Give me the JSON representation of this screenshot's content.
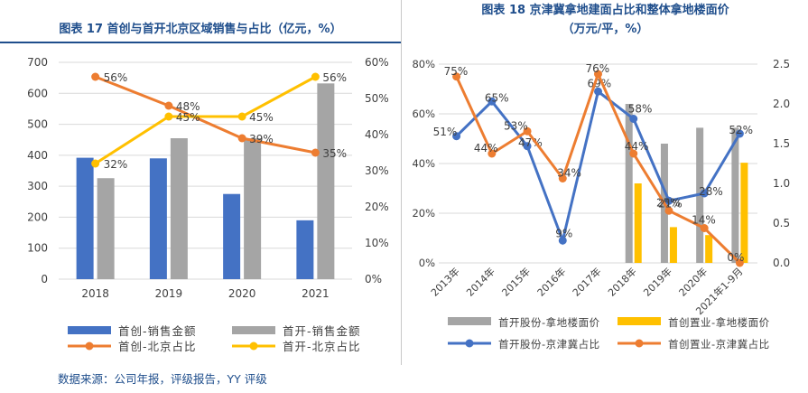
{
  "chart_data": [
    {
      "type": "bar",
      "title": "图表 17 首创与首开北京区域销售与占比（亿元，%）",
      "categories": [
        "2018",
        "2019",
        "2020",
        "2021"
      ],
      "y_left_ticks": [
        "0",
        "100",
        "200",
        "300",
        "400",
        "500",
        "600",
        "700"
      ],
      "y_right_ticks": [
        "0%",
        "10%",
        "20%",
        "30%",
        "40%",
        "50%",
        "60%"
      ],
      "ylim_left": [
        0,
        700
      ],
      "ylim_right": [
        0,
        60
      ],
      "grid": true,
      "legend_position": "bottom",
      "series": [
        {
          "name": "首创-销售金额",
          "kind": "bar",
          "axis": "left",
          "color": "#4472c4",
          "values": [
            392,
            390,
            275,
            190
          ]
        },
        {
          "name": "首开-销售金额",
          "kind": "bar",
          "axis": "left",
          "color": "#a5a5a5",
          "values": [
            326,
            455,
            455,
            632
          ]
        },
        {
          "name": "首创-北京占比",
          "kind": "line",
          "axis": "right",
          "color": "#ed7d31",
          "values": [
            56,
            48,
            39,
            35
          ],
          "labels": [
            "56%",
            "48%",
            "39%",
            "35%"
          ]
        },
        {
          "name": "首开-北京占比",
          "kind": "line",
          "axis": "right",
          "color": "#ffc000",
          "values": [
            32,
            45,
            45,
            56
          ],
          "labels": [
            "32%",
            "45%",
            "45%",
            "56%"
          ]
        }
      ]
    },
    {
      "type": "bar",
      "title": "图表 18 京津冀拿地建面占比和整体拿地楼面价",
      "subtitle": "（万元/平，%）",
      "categories": [
        "2013年",
        "2014年",
        "2015年",
        "2016年",
        "2017年",
        "2018年",
        "2019年",
        "2020年",
        "2021年1-9月"
      ],
      "y_left_ticks": [
        "0%",
        "20%",
        "40%",
        "60%",
        "80%"
      ],
      "y_right_ticks": [
        "0.0",
        "0.5",
        "1.0",
        "1.5",
        "2.0",
        "2.5"
      ],
      "ylim_left": [
        0,
        80
      ],
      "ylim_right": [
        0,
        2.5
      ],
      "grid": true,
      "legend_position": "bottom",
      "series": [
        {
          "name": "首开股份-拿地楼面价",
          "kind": "bar",
          "axis": "right",
          "color": "#a5a5a5",
          "values": [
            null,
            null,
            null,
            null,
            null,
            2.0,
            1.5,
            1.7,
            1.7
          ]
        },
        {
          "name": "首创置业-拿地楼面价",
          "kind": "bar",
          "axis": "right",
          "color": "#ffc000",
          "values": [
            null,
            null,
            null,
            null,
            null,
            1.0,
            0.45,
            0.35,
            1.26
          ]
        },
        {
          "name": "首开股份-京津冀占比",
          "kind": "line",
          "axis": "left",
          "color": "#4472c4",
          "values": [
            51,
            65,
            47,
            9,
            69,
            58,
            25,
            28,
            52
          ],
          "labels": [
            "51%",
            "65%",
            "47%",
            "9%",
            "69%",
            "58%",
            "25%",
            "28%",
            "52%"
          ]
        },
        {
          "name": "首创置业-京津冀占比",
          "kind": "line",
          "axis": "left",
          "color": "#ed7d31",
          "values": [
            75,
            44,
            53,
            34,
            76,
            44,
            21,
            14,
            0
          ],
          "labels": [
            "75%",
            "44%",
            "53%",
            "34%",
            "76%",
            "44%",
            "21%",
            "14%",
            "0%"
          ]
        }
      ]
    }
  ],
  "source": "数据来源：公司年报，评级报告，YY 评级"
}
